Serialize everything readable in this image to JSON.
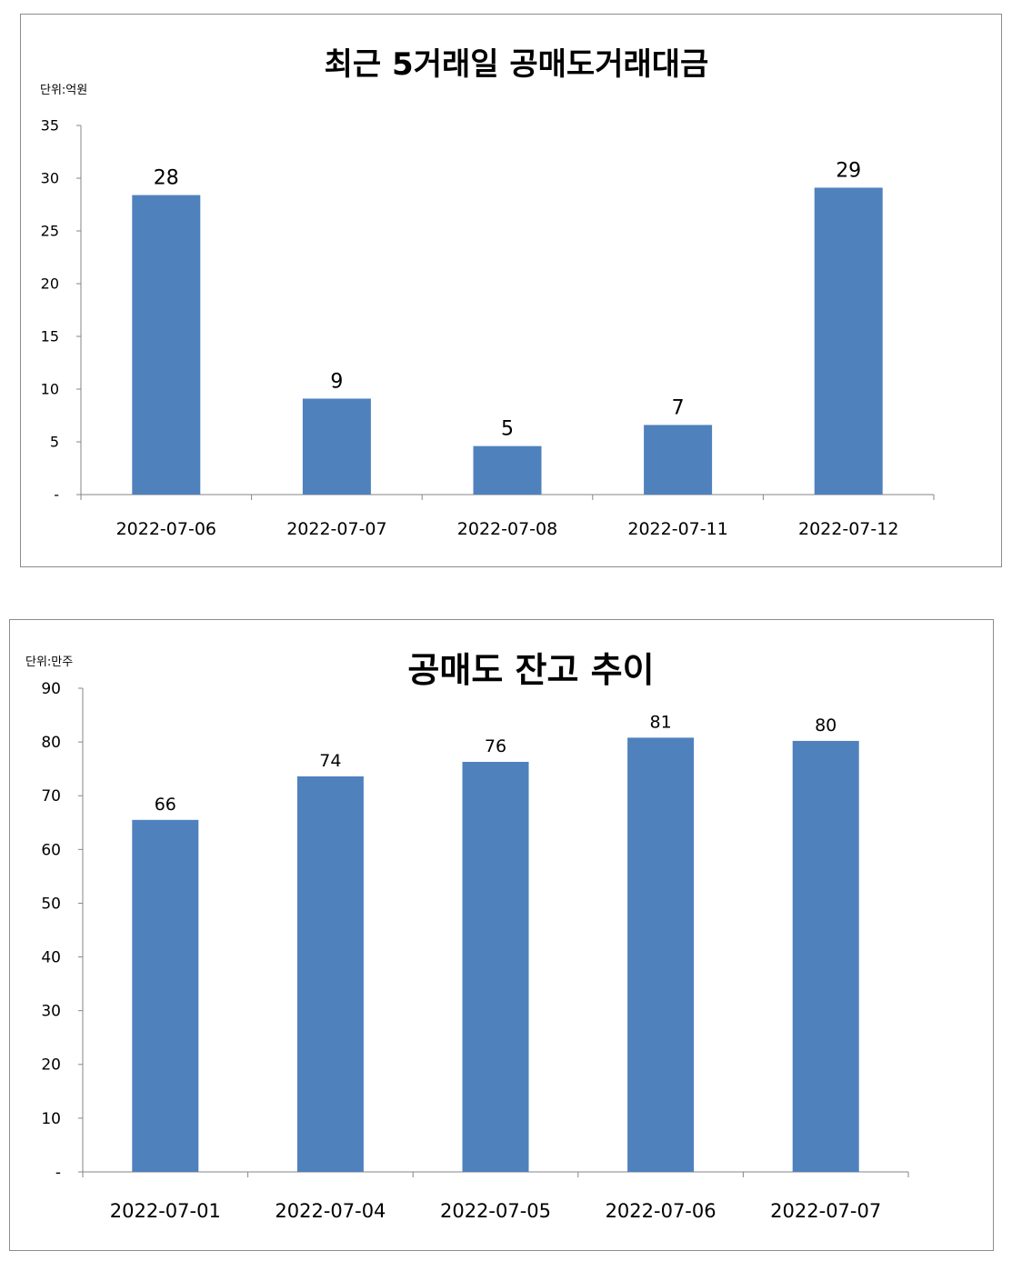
{
  "chart_data": [
    {
      "type": "bar",
      "title": "최근 5거래일 공매도거래대금",
      "unit_label": "단위:억원",
      "categories": [
        "2022-07-06",
        "2022-07-07",
        "2022-07-08",
        "2022-07-11",
        "2022-07-12"
      ],
      "values": [
        28.4,
        9.1,
        4.6,
        6.6,
        29.1
      ],
      "data_labels": [
        "28",
        "9",
        "5",
        "7",
        "29"
      ],
      "ylim": [
        0,
        35
      ],
      "y_ticks": [
        "-",
        "5",
        "10",
        "15",
        "20",
        "25",
        "30",
        "35"
      ],
      "bar_color": "#4f81bd",
      "grid": false,
      "legend": "none"
    },
    {
      "type": "bar",
      "title": "공매도 잔고 추이",
      "unit_label": "단위:만주",
      "categories": [
        "2022-07-01",
        "2022-07-04",
        "2022-07-05",
        "2022-07-06",
        "2022-07-07"
      ],
      "values": [
        65.5,
        73.6,
        76.3,
        80.8,
        80.2
      ],
      "data_labels": [
        "66",
        "74",
        "76",
        "81",
        "80"
      ],
      "ylim": [
        0,
        90
      ],
      "y_ticks": [
        "-",
        "10",
        "20",
        "30",
        "40",
        "50",
        "60",
        "70",
        "80",
        "90"
      ],
      "bar_color": "#4f81bd",
      "grid": false,
      "legend": "none"
    }
  ]
}
